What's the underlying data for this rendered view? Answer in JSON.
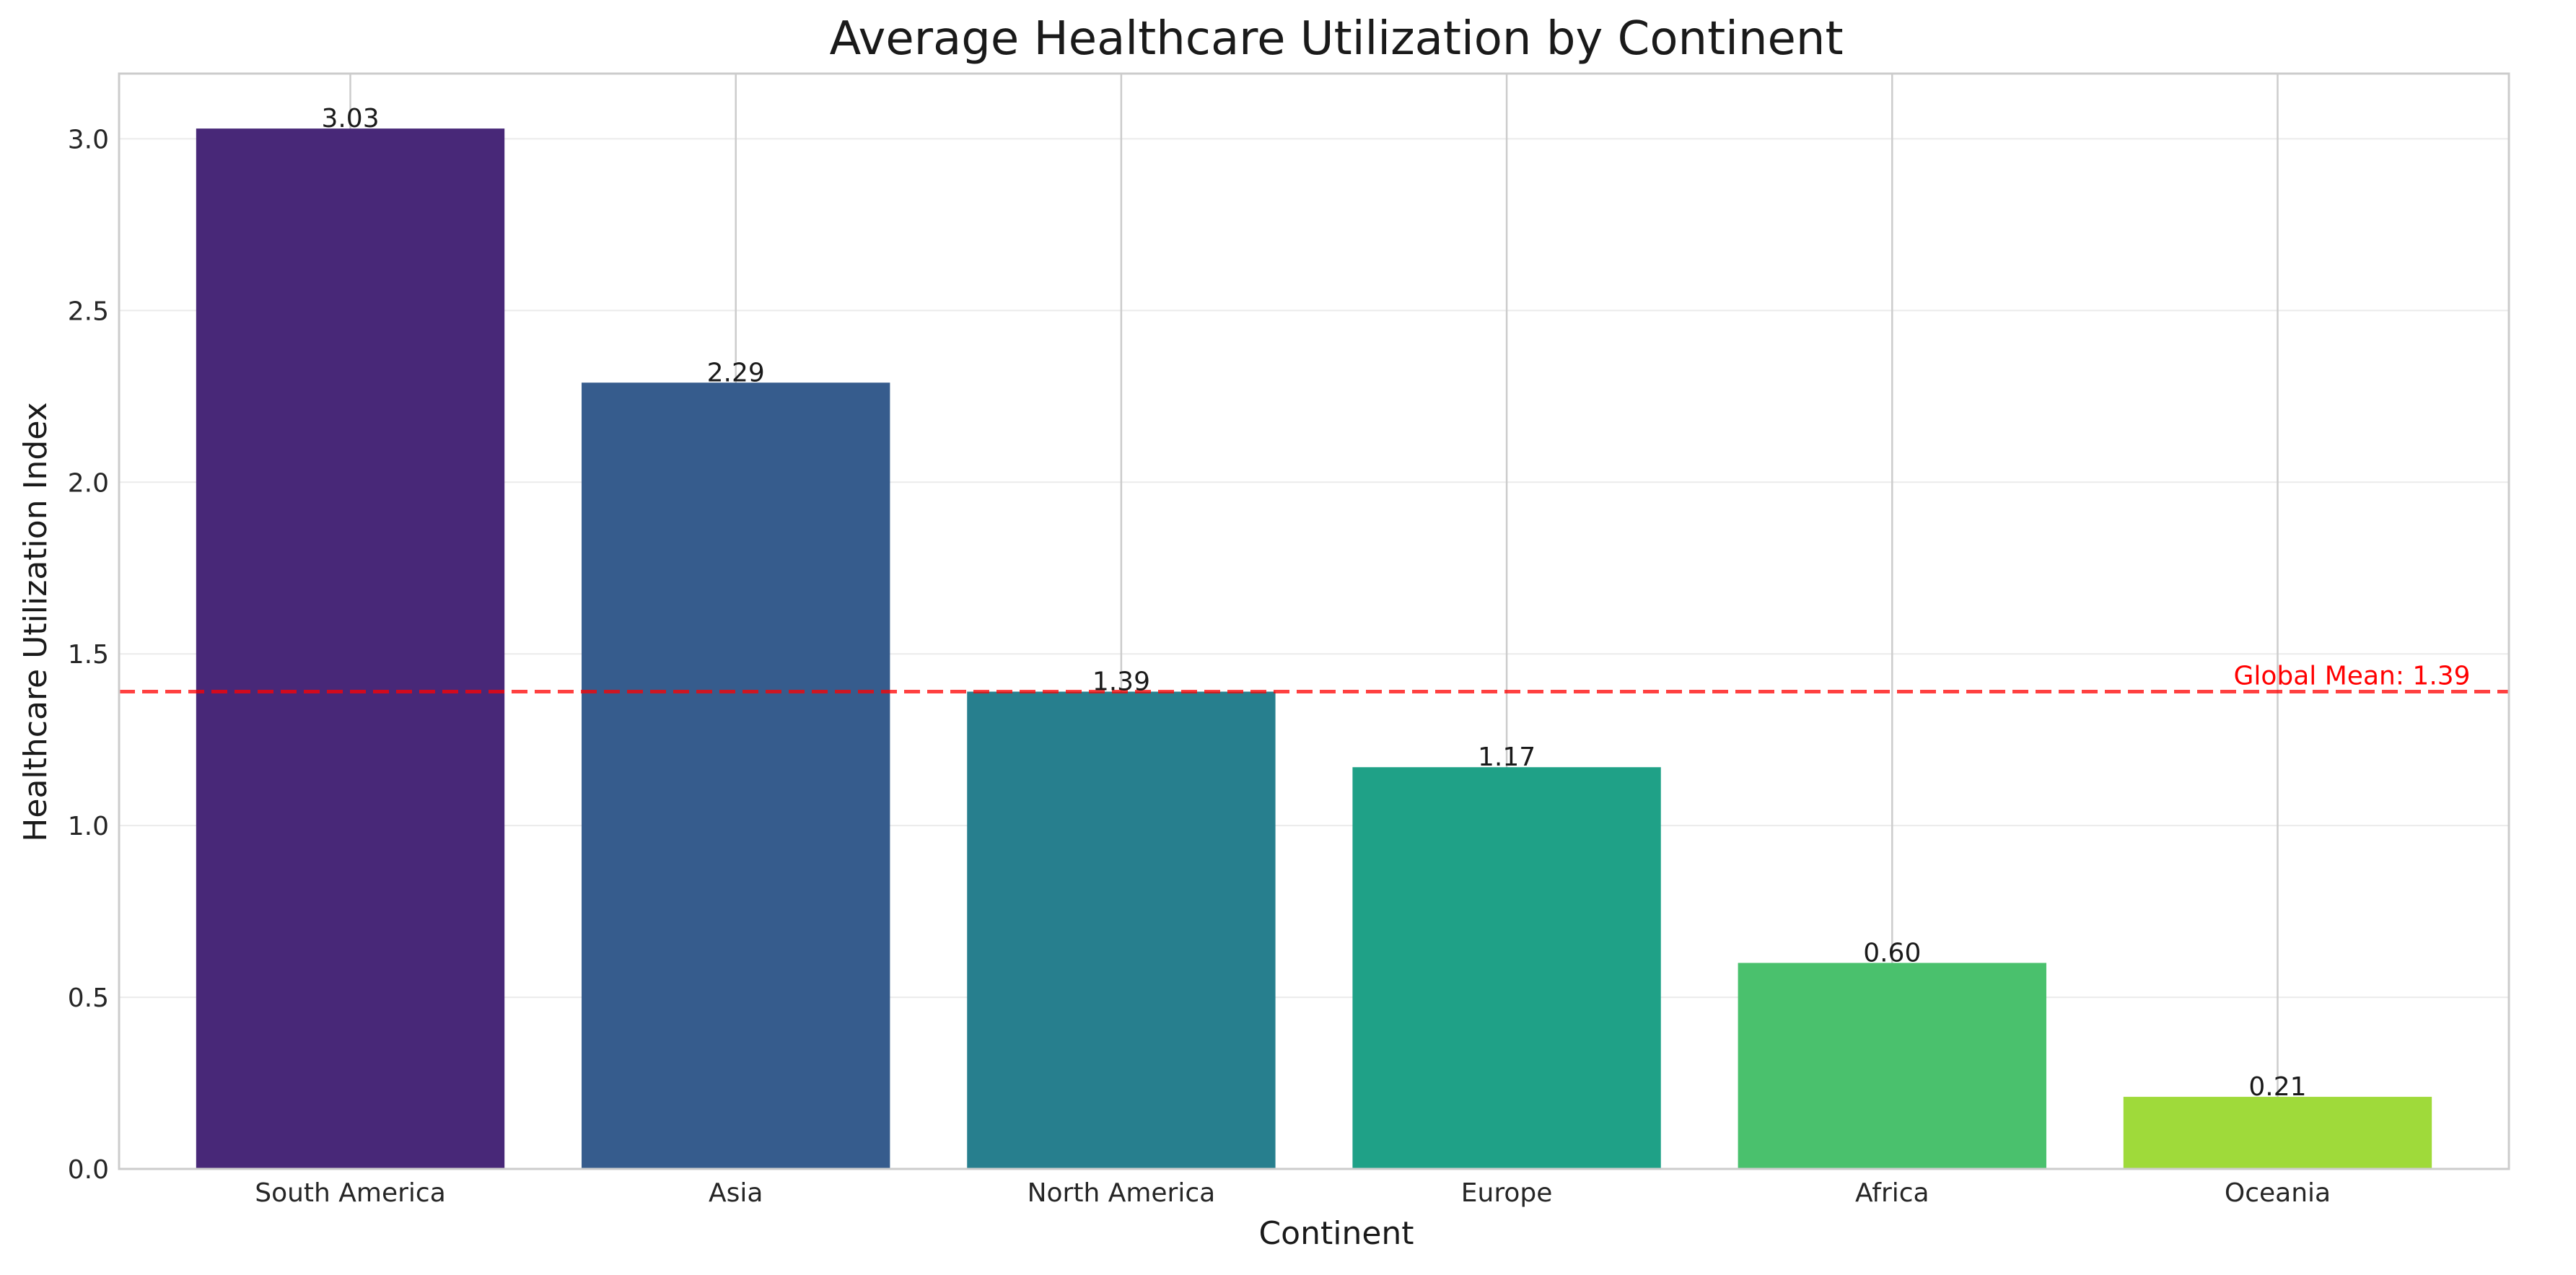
{
  "chart_data": {
    "type": "bar",
    "title": "Average Healthcare Utilization by Continent",
    "xlabel": "Continent",
    "ylabel": "Healthcare Utilization Index",
    "categories": [
      "South America",
      "Asia",
      "North America",
      "Europe",
      "Africa",
      "Oceania"
    ],
    "values": [
      3.03,
      2.29,
      1.39,
      1.17,
      0.6,
      0.21
    ],
    "value_labels": [
      "3.03",
      "2.29",
      "1.39",
      "1.17",
      "0.60",
      "0.21"
    ],
    "bar_colors": [
      "#482878",
      "#365c8d",
      "#277f8e",
      "#1fa187",
      "#4ac16d",
      "#9fda3a"
    ],
    "ylim": [
      0,
      3.19
    ],
    "yticks": [
      0.0,
      0.5,
      1.0,
      1.5,
      2.0,
      2.5,
      3.0
    ],
    "ytick_labels": [
      "0.0",
      "0.5",
      "1.0",
      "1.5",
      "2.0",
      "2.5",
      "3.0"
    ],
    "grid": true,
    "reference_line": {
      "value": 1.39,
      "label": "Global Mean: 1.39",
      "color": "#ff0000",
      "style": "dashed"
    }
  }
}
